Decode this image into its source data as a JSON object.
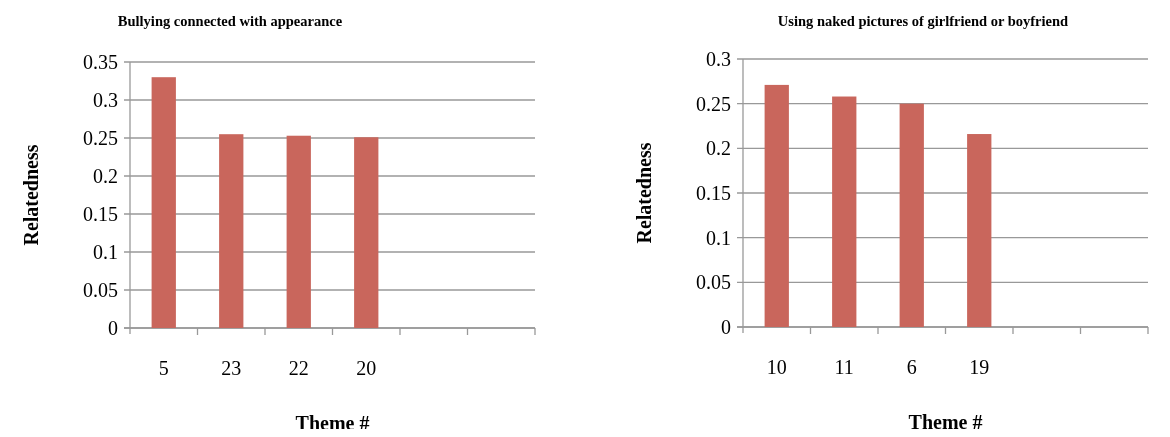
{
  "chart_data": [
    {
      "type": "bar",
      "title": "Bullying connected with appearance",
      "xlabel": "Theme #",
      "ylabel": "Relatedness",
      "categories": [
        "5",
        "23",
        "22",
        "20",
        null,
        null
      ],
      "values": [
        0.33,
        0.255,
        0.253,
        0.251,
        null,
        null
      ],
      "color": "#c9665c",
      "ylim": [
        0,
        0.35
      ],
      "yticks": [
        0,
        0.05,
        0.1,
        0.15,
        0.2,
        0.25,
        0.3,
        0.35
      ],
      "grid": "y"
    },
    {
      "type": "bar",
      "title": "Using naked pictures of girlfriend or boyfriend",
      "xlabel": "Theme #",
      "ylabel": "Relatedness",
      "categories": [
        "10",
        "11",
        "6",
        "19",
        null,
        null
      ],
      "values": [
        0.271,
        0.258,
        0.25,
        0.216,
        null,
        null
      ],
      "color": "#c9665c",
      "ylim": [
        0,
        0.3
      ],
      "yticks": [
        0,
        0.05,
        0.1,
        0.15,
        0.2,
        0.25,
        0.3
      ],
      "grid": "y"
    }
  ]
}
